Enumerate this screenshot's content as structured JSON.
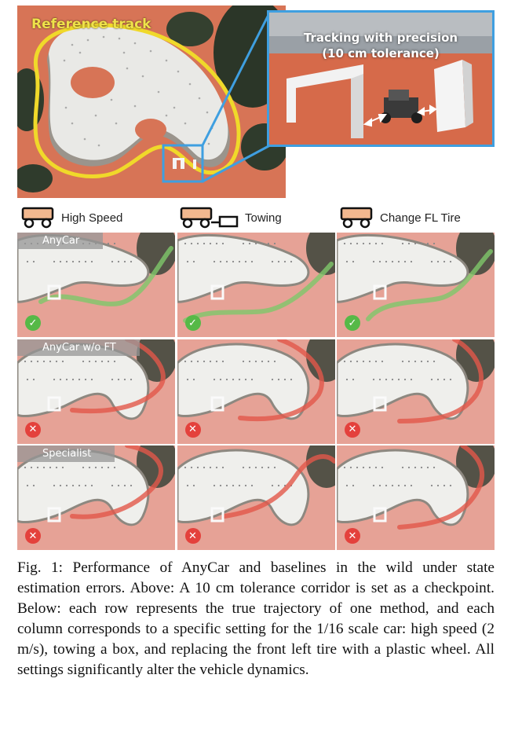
{
  "top": {
    "reference_label": "Reference track",
    "inset_title_line1": "Tracking with precision",
    "inset_title_line2": "(10 cm tolerance)",
    "colors": {
      "reference_path": "#f0d92a",
      "inset_border": "#3f9fe0"
    }
  },
  "columns": [
    {
      "label": "High Speed",
      "icon": "car-icon"
    },
    {
      "label": "Towing",
      "icon": "car-towing-icon"
    },
    {
      "label": "Change FL Tire",
      "icon": "car-tire-icon"
    }
  ],
  "rows": [
    {
      "label": "AnyCar",
      "results": [
        "success",
        "success",
        "success"
      ],
      "trajectory_color": "#7ec86a"
    },
    {
      "label": "AnyCar w/o FT",
      "results": [
        "fail",
        "fail",
        "fail"
      ],
      "trajectory_color": "#e2574a"
    },
    {
      "label": "Specialist",
      "results": [
        "fail",
        "fail",
        "fail"
      ],
      "trajectory_color": "#e2574a"
    }
  ],
  "status_icons": {
    "success": "check-icon",
    "fail": "cross-icon"
  },
  "caption": "Fig. 1: Performance of AnyCar and baselines in the wild under state estimation errors. Above: A 10 cm tolerance corridor is set as a checkpoint. Below: each row represents the true trajectory of one method, and each column corresponds to a specific setting for the 1/16 scale car: high speed (2 m/s), towing a box, and replacing the front left tire with a plastic wheel. All settings significantly alter the vehicle dynamics."
}
